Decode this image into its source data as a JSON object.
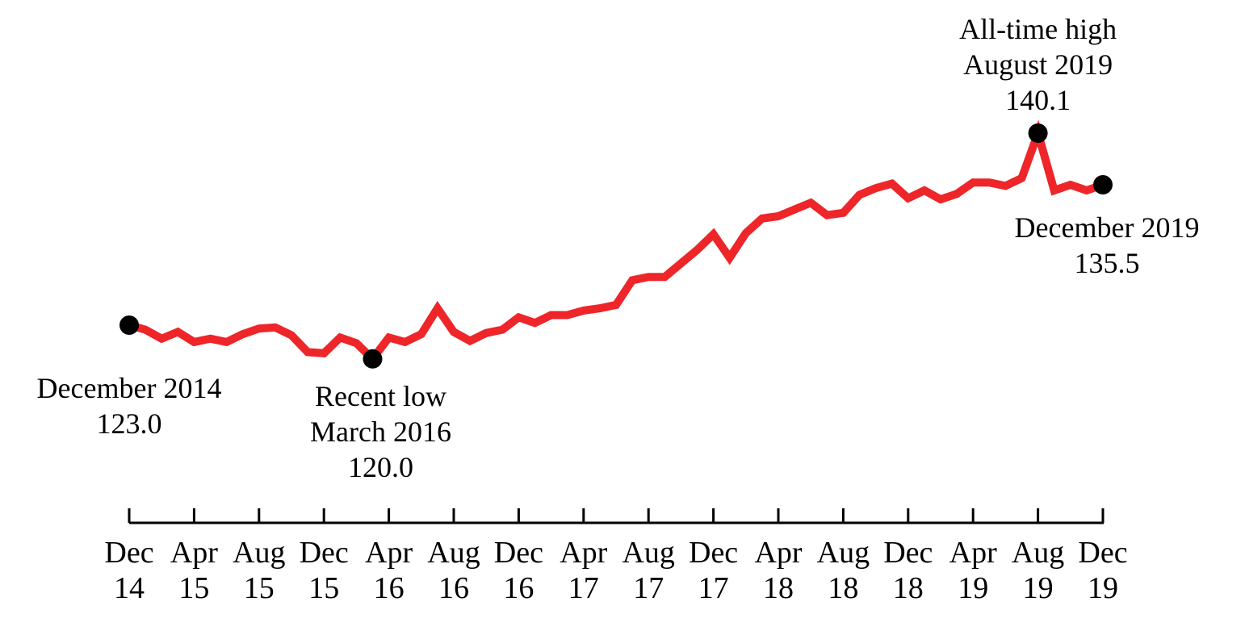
{
  "chart_data": {
    "type": "line",
    "title": "",
    "xlabel": "",
    "ylabel": "",
    "line_color": "#ee2529",
    "marker_color": "#000000",
    "ylim": [
      117,
      142
    ],
    "x_ticks": [
      {
        "month": "Dec",
        "year": "14"
      },
      {
        "month": "Apr",
        "year": "15"
      },
      {
        "month": "Aug",
        "year": "15"
      },
      {
        "month": "Dec",
        "year": "15"
      },
      {
        "month": "Apr",
        "year": "16"
      },
      {
        "month": "Aug",
        "year": "16"
      },
      {
        "month": "Dec",
        "year": "16"
      },
      {
        "month": "Apr",
        "year": "17"
      },
      {
        "month": "Aug",
        "year": "17"
      },
      {
        "month": "Dec",
        "year": "17"
      },
      {
        "month": "Apr",
        "year": "18"
      },
      {
        "month": "Aug",
        "year": "18"
      },
      {
        "month": "Dec",
        "year": "18"
      },
      {
        "month": "Apr",
        "year": "19"
      },
      {
        "month": "Aug",
        "year": "19"
      },
      {
        "month": "Dec",
        "year": "19"
      }
    ],
    "series": [
      {
        "x": [
          "2014-12",
          "2015-01",
          "2015-02",
          "2015-03",
          "2015-04",
          "2015-05",
          "2015-06",
          "2015-07",
          "2015-08",
          "2015-09",
          "2015-10",
          "2015-11",
          "2015-12",
          "2016-01",
          "2016-02",
          "2016-03",
          "2016-04",
          "2016-05",
          "2016-06",
          "2016-07",
          "2016-08",
          "2016-09",
          "2016-10",
          "2016-11",
          "2016-12",
          "2017-01",
          "2017-02",
          "2017-03",
          "2017-04",
          "2017-05",
          "2017-06",
          "2017-07",
          "2017-08",
          "2017-09",
          "2017-10",
          "2017-11",
          "2017-12",
          "2018-01",
          "2018-02",
          "2018-03",
          "2018-04",
          "2018-05",
          "2018-06",
          "2018-07",
          "2018-08",
          "2018-09",
          "2018-10",
          "2018-11",
          "2018-12",
          "2019-01",
          "2019-02",
          "2019-03",
          "2019-04",
          "2019-05",
          "2019-06",
          "2019-07",
          "2019-08",
          "2019-09",
          "2019-10",
          "2019-11",
          "2019-12"
        ],
        "values": [
          123.0,
          122.6,
          121.8,
          122.4,
          121.5,
          121.8,
          121.5,
          122.2,
          122.7,
          122.8,
          122.1,
          120.6,
          120.5,
          121.9,
          121.4,
          120.0,
          121.9,
          121.5,
          122.2,
          124.5,
          122.4,
          121.6,
          122.3,
          122.6,
          123.7,
          123.2,
          123.9,
          123.9,
          124.3,
          124.5,
          124.8,
          127.0,
          127.3,
          127.3,
          128.5,
          129.7,
          131.1,
          129.0,
          131.2,
          132.5,
          132.7,
          133.3,
          133.9,
          132.8,
          133.0,
          134.6,
          135.2,
          135.6,
          134.3,
          135.0,
          134.2,
          134.7,
          135.7,
          135.7,
          135.4,
          136.1,
          140.1,
          135.0,
          135.5,
          135.0,
          135.5
        ]
      }
    ],
    "annotations": [
      {
        "at": "2014-12",
        "value": 123.0,
        "lines": [
          "December 2014",
          "123.0"
        ]
      },
      {
        "at": "2016-03",
        "value": 120.0,
        "lines": [
          "Recent low",
          "March 2016",
          "120.0"
        ]
      },
      {
        "at": "2019-08",
        "value": 140.1,
        "lines": [
          "All-time high",
          "August 2019",
          "140.1"
        ]
      },
      {
        "at": "2019-12",
        "value": 135.5,
        "lines": [
          "December 2019",
          "135.5"
        ]
      }
    ]
  }
}
